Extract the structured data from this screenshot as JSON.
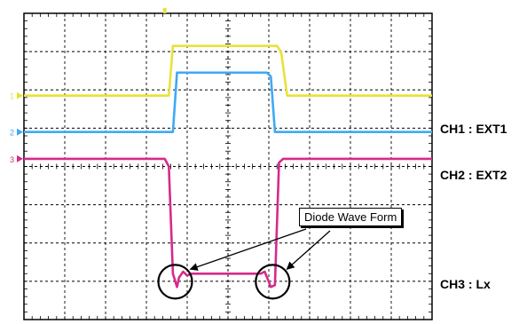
{
  "chart_data": {
    "type": "line",
    "title": "",
    "xlabel": "",
    "ylabel": "",
    "divisions": {
      "x": 10,
      "y": 8
    },
    "xlim": [
      0,
      10
    ],
    "ylim": [
      0,
      8
    ],
    "grid": true,
    "series": [
      {
        "name": "CH1 : EXT1",
        "color": "#e8e23a",
        "x": [
          0,
          3.4,
          3.55,
          3.65,
          3.7,
          6.2,
          6.3,
          6.45,
          6.55,
          10
        ],
        "y": [
          5.85,
          5.85,
          5.85,
          7.15,
          7.15,
          7.15,
          7.0,
          5.85,
          5.85,
          5.85
        ]
      },
      {
        "name": "CH2 : EXT2",
        "color": "#3fa9f5",
        "x": [
          0,
          3.65,
          3.75,
          3.85,
          5.95,
          6.05,
          6.15,
          10
        ],
        "y": [
          4.9,
          4.9,
          6.45,
          6.45,
          6.45,
          6.35,
          4.9,
          4.9
        ]
      },
      {
        "name": "CH3 : Lx",
        "color": "#d62a8c",
        "x": [
          0,
          3.45,
          3.55,
          3.65,
          3.75,
          3.8,
          3.9,
          4.0,
          4.1,
          5.8,
          5.9,
          6.05,
          6.15,
          6.25,
          6.35,
          10
        ],
        "y": [
          4.2,
          4.2,
          4.0,
          1.2,
          0.85,
          1.1,
          1.25,
          1.15,
          1.2,
          1.2,
          1.25,
          0.85,
          0.9,
          4.1,
          4.2,
          4.2
        ]
      }
    ],
    "ground_markers": [
      "1",
      "2",
      "3"
    ],
    "annotation": "Diode Wave Form"
  }
}
